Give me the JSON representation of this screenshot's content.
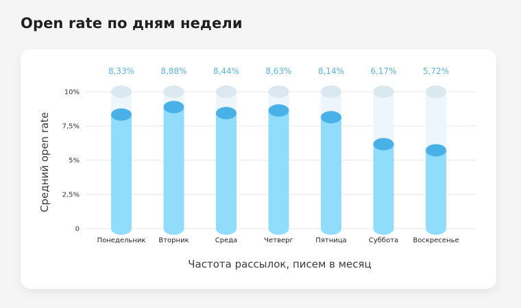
{
  "page": {
    "title": "Open rate по дням недели"
  },
  "colors": {
    "value_label": "#5ab2e6",
    "bar_body": "#8fdcfb",
    "bar_top": "#49b0e8",
    "track_body": "#edf6fb",
    "track_cap": "#dbe8f0",
    "grid": "#e6e6e6"
  },
  "chart_data": {
    "type": "bar",
    "xlabel": "Частота рассылок, писем в месяц",
    "ylabel": "Средний open rate",
    "ylim": [
      0,
      10
    ],
    "yticks": [
      {
        "value": 0,
        "label": "0"
      },
      {
        "value": 2.5,
        "label": "2,5%"
      },
      {
        "value": 5,
        "label": "5%"
      },
      {
        "value": 7.5,
        "label": "7,5%"
      },
      {
        "value": 10,
        "label": "10%"
      }
    ],
    "categories": [
      "Понедельник",
      "Вторник",
      "Среда",
      "Четверг",
      "Пятница",
      "Суббота",
      "Воскресенье"
    ],
    "values": [
      8.33,
      8.88,
      8.44,
      8.63,
      8.14,
      6.17,
      5.72
    ],
    "value_labels": [
      "8,33%",
      "8,88%",
      "8,44%",
      "8,63%",
      "8,14%",
      "6,17%",
      "5,72%"
    ],
    "grid": true
  }
}
